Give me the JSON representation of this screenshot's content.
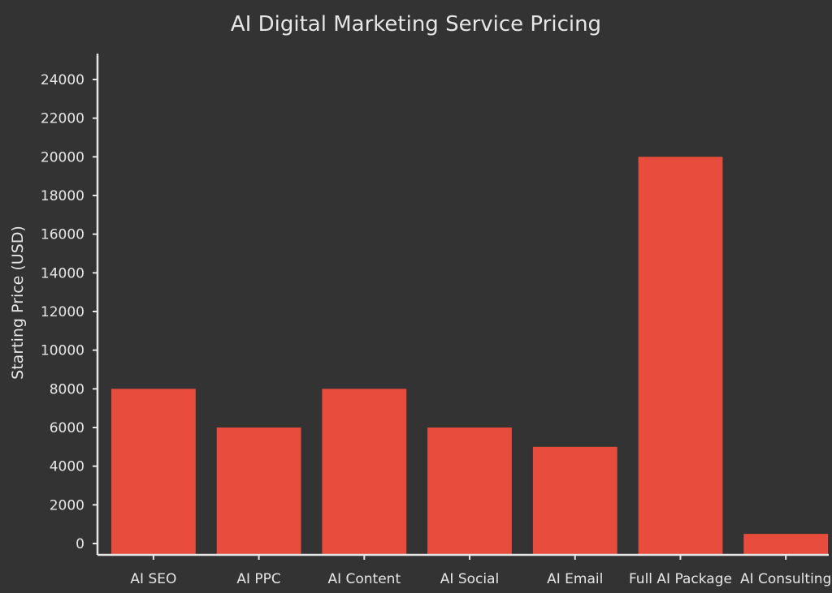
{
  "chart_data": {
    "type": "bar",
    "title": "AI Digital Marketing Service Pricing",
    "ylabel": "Starting Price (USD)",
    "xlabel": "",
    "categories": [
      "AI SEO",
      "AI PPC",
      "AI Content",
      "AI Social",
      "AI Email",
      "Full AI Package",
      "AI Consulting"
    ],
    "values": [
      8000,
      6000,
      8000,
      6000,
      5000,
      20000,
      500
    ],
    "ylim": [
      0,
      25000
    ],
    "yticks": [
      0,
      2000,
      4000,
      6000,
      8000,
      10000,
      12000,
      14000,
      16000,
      18000,
      20000,
      22000,
      24000
    ],
    "grid": false,
    "legend": "none",
    "colors": {
      "background": "#333333",
      "bar": "#e74c3c",
      "axis": "#e6e6e6",
      "text": "#e6e6e6"
    }
  }
}
